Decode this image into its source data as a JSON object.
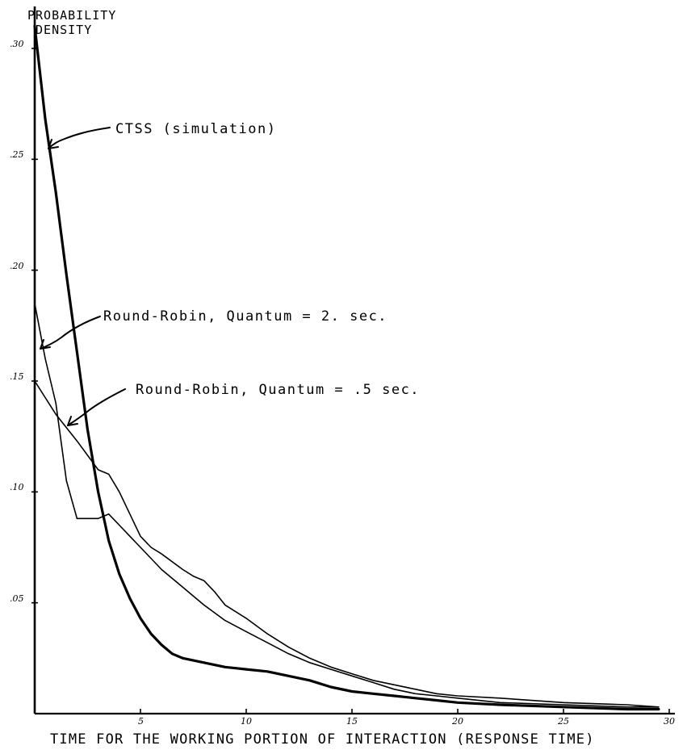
{
  "chart_data": {
    "type": "line",
    "ylabel": "PROBABILITY\n DENSITY",
    "xlabel": "TIME FOR THE WORKING PORTION OF INTERACTION (RESPONSE TIME)",
    "xlim": [
      0,
      30
    ],
    "ylim": [
      0,
      0.32
    ],
    "x_ticks": [
      {
        "value": 5,
        "label": "5"
      },
      {
        "value": 10,
        "label": "10"
      },
      {
        "value": 15,
        "label": "15"
      },
      {
        "value": 20,
        "label": "20"
      },
      {
        "value": 25,
        "label": "25"
      },
      {
        "value": 30,
        "label": "30"
      }
    ],
    "y_ticks": [
      {
        "value": 0.05,
        "label": ".05"
      },
      {
        "value": 0.1,
        "label": ".10"
      },
      {
        "value": 0.15,
        "label": ".15"
      },
      {
        "value": 0.2,
        "label": ".20"
      },
      {
        "value": 0.25,
        "label": ".25"
      },
      {
        "value": 0.3,
        "label": ".30"
      }
    ],
    "grid": false,
    "legend": "none",
    "series": [
      {
        "name": "CTSS (simulation)",
        "emphasis": "thick",
        "x": [
          0,
          0.5,
          1,
          1.5,
          2,
          2.5,
          3,
          3.5,
          4,
          4.5,
          5,
          5.5,
          6,
          6.5,
          7,
          7.5,
          8,
          8.5,
          9,
          9.5,
          10,
          11,
          12,
          13,
          14,
          15,
          16,
          17,
          18,
          19,
          20,
          22,
          25,
          28,
          29.5
        ],
        "y": [
          0.31,
          0.268,
          0.235,
          0.198,
          0.163,
          0.128,
          0.1,
          0.078,
          0.063,
          0.052,
          0.043,
          0.036,
          0.031,
          0.027,
          0.025,
          0.024,
          0.023,
          0.022,
          0.021,
          0.0205,
          0.02,
          0.019,
          0.017,
          0.015,
          0.012,
          0.01,
          0.009,
          0.008,
          0.007,
          0.006,
          0.005,
          0.004,
          0.003,
          0.002,
          0.002
        ]
      },
      {
        "name": "Round-Robin, Quantum = 2. sec.",
        "emphasis": "normal",
        "x": [
          0,
          0.5,
          1,
          1.5,
          2,
          2.5,
          3,
          3.5,
          4,
          4.5,
          5,
          6,
          7,
          8,
          9,
          10,
          11,
          12,
          13,
          14,
          15,
          16,
          17,
          18,
          19,
          20,
          22,
          25,
          28,
          29.5
        ],
        "y": [
          0.185,
          0.16,
          0.14,
          0.105,
          0.088,
          0.088,
          0.088,
          0.09,
          0.085,
          0.08,
          0.075,
          0.065,
          0.057,
          0.049,
          0.042,
          0.037,
          0.032,
          0.027,
          0.023,
          0.02,
          0.017,
          0.014,
          0.011,
          0.009,
          0.008,
          0.007,
          0.005,
          0.004,
          0.003,
          0.003
        ]
      },
      {
        "name": "Round-Robin, Quantum = .5 sec.",
        "emphasis": "normal",
        "x": [
          0,
          1,
          2,
          3,
          3.5,
          4,
          4.5,
          5,
          5.5,
          6,
          7,
          7.5,
          8,
          8.5,
          9,
          10,
          11,
          12,
          13,
          14,
          15,
          16,
          17,
          18,
          19,
          20,
          22,
          25,
          28,
          29.5
        ],
        "y": [
          0.15,
          0.135,
          0.123,
          0.11,
          0.108,
          0.1,
          0.09,
          0.08,
          0.075,
          0.072,
          0.065,
          0.062,
          0.06,
          0.055,
          0.049,
          0.043,
          0.036,
          0.03,
          0.025,
          0.021,
          0.018,
          0.015,
          0.013,
          0.011,
          0.009,
          0.008,
          0.007,
          0.005,
          0.004,
          0.003
        ]
      }
    ]
  }
}
